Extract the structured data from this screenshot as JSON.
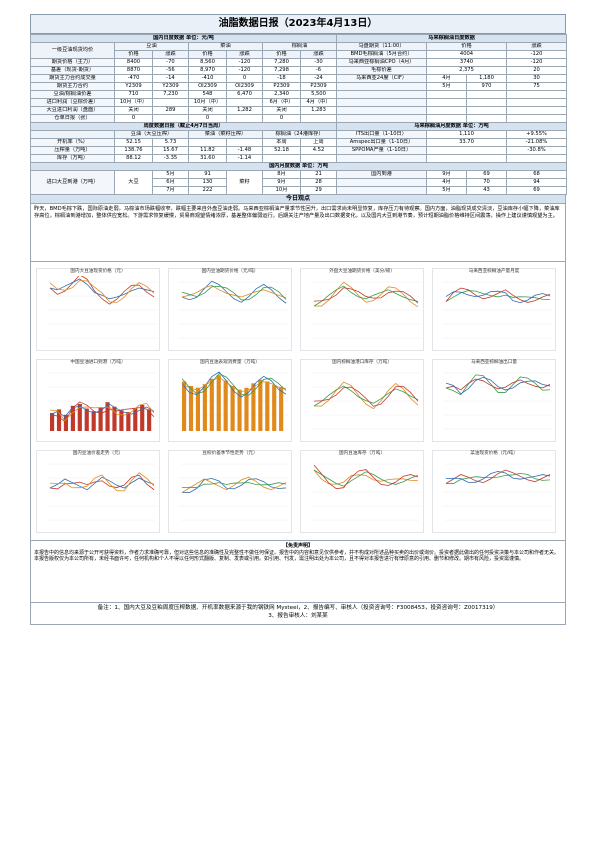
{
  "title": "油脂数据日报（2023年4月13日）",
  "sec": {
    "domestic": "国内日度数据 单位：元/吨",
    "malaysia": "马来棕榈油日度数据",
    "weekly": "周度数据日报（截止4月7日当周）",
    "mpob": "马来棕榈油月度数据 单位：万吨",
    "monthly": "国内月度数据 单位：万吨",
    "comment": "今日观点"
  },
  "products": {
    "soy": "豆油",
    "rapeseed": "菜油",
    "palm": "棕榈油"
  },
  "cols": {
    "price": "价格",
    "change": "涨跌"
  },
  "row_labels": [
    "一级豆油现货均价",
    "期货价格（主力）",
    "基差（现货-期货）",
    "期货主力合约成交量",
    "豆油/棕榈油价差",
    "期货主力合约"
  ],
  "spot": [
    [
      "8400",
      "-70"
    ],
    [
      "8,560",
      "-120"
    ],
    [
      "7,280",
      "-30"
    ]
  ],
  "fut": [
    [
      "8870",
      "-56"
    ],
    [
      "8,970",
      "-120"
    ],
    [
      "7,298",
      "-6"
    ]
  ],
  "basis": [
    [
      "-470",
      "-14"
    ],
    [
      "-410",
      "0"
    ],
    [
      "-18",
      "-24"
    ]
  ],
  "vol": [
    [
      "Y2309",
      "Y2309"
    ],
    [
      "OI2309",
      "OI2309"
    ],
    [
      "P2309",
      "P2309"
    ]
  ],
  "spread": [
    [
      "710",
      "7,230"
    ],
    [
      "548",
      "6,470"
    ],
    [
      "2,340",
      "5,500"
    ]
  ],
  "mcol": [
    "马盘期货（11:00）",
    "价格",
    "涨跌"
  ],
  "mrows": [
    [
      "BMD毛棕榈油（5月合约）",
      "4004",
      "-120"
    ],
    [
      "马来西亚棕榈油CPO（4月）",
      "3740",
      "-120"
    ],
    [
      "毛棕价差",
      "2,375",
      "20"
    ],
    [
      "马来西亚24度（CIF）",
      "4月",
      "1,180",
      "30"
    ]
  ],
  "mprod": [
    "5月",
    "970",
    "75"
  ],
  "inv_labels": [
    "进口利润（豆棕价差）",
    "大豆进口利润（盘面）",
    "在途船数/到港",
    "仓单日报（张）"
  ],
  "inv": [
    [
      "10月（中）",
      "10月（中）",
      "6月（中）",
      "4月（中）"
    ],
    [
      "关闭",
      "289",
      "0"
    ],
    [
      "关闭",
      "1,282",
      "0"
    ],
    [
      "关闭",
      "1,283",
      "0"
    ]
  ],
  "weekly_hdr": [
    "豆油（大豆压榨）",
    "111家豆油库存",
    "菜油（菜籽压榨）",
    "15家菜油库存",
    "棕榈油（24港库存）",
    "本周",
    "上周"
  ],
  "weekly": [
    [
      "开机率（%）",
      "52.15",
      "5.73"
    ],
    [
      "压榨量（万吨）",
      "138.76",
      "15.67",
      "11.82",
      "-1.48",
      "52.18",
      "4.52"
    ],
    [
      "库存（万吨）",
      "88.12",
      "-3.35",
      "31.60",
      "-1.14"
    ]
  ],
  "mpob_rows": [
    [
      "ITS出口量（1-10日）",
      "1,110",
      "+9.55%"
    ],
    [
      "Amspec出口量（1-10日）",
      "33.70",
      "-21.08%"
    ],
    [
      "SPPOMA产量（1-10日）",
      "",
      "-30.8%"
    ]
  ],
  "month_rows": [
    [
      "5月",
      "91",
      "8月",
      "21",
      "68"
    ],
    [
      "6月",
      "130",
      "9月",
      "28",
      "94"
    ],
    [
      "7月",
      "222",
      "10月",
      "29",
      "69"
    ]
  ],
  "month_side": [
    "大豆",
    "菜籽",
    "棕榈油"
  ],
  "dom_rows": [
    [
      "国内到港",
      "9月",
      "69"
    ],
    [
      "4月",
      "4月",
      "70"
    ],
    [
      "5月",
      "5月",
      "43"
    ]
  ],
  "price_rows": [
    [
      "进口大豆到港（万吨）",
      "",
      "",
      "",
      ""
    ],
    [
      "",
      "",
      "",
      "",
      ""
    ]
  ],
  "comment": "昨天，BMD毛棕下跌，国际原油走弱，马棕油市场跌幅收窄，跌幅主要来自外盘豆油走弱。马来西亚棕榈油产量季节性回升，出口需求尚未明显恢复，库存压力有待观察。国内方面，油脂现货成交清淡，豆油库存小幅下降，菜油库存高位，棕榈油到港增加，整体供应宽松。下游需求恢复缓慢，贸易商观望情绪浓厚，基差整体偏弱运行。后期关注产地产量及出口数据变化，以及国内大豆到港节奏，预计短期油脂价格维持区间震荡，操作上建议谨慎观望为主。",
  "charts": [
    {
      "title": "国内大豆油现货价格（元）",
      "series": [
        [
          60,
          58,
          62,
          66,
          70,
          64,
          55,
          52,
          48,
          50,
          53,
          57,
          60,
          58,
          56
        ]
      ]
    },
    {
      "title": "国内豆油期货价格（元/吨）",
      "series": [
        [
          50,
          52,
          55,
          60,
          63,
          58,
          54,
          52,
          50,
          53,
          56,
          58,
          55,
          52,
          49
        ]
      ]
    },
    {
      "title": "外盘大豆油期货价格（美分/磅）",
      "series": [
        [
          40,
          45,
          52,
          58,
          62,
          55,
          50,
          48,
          52,
          55,
          58,
          54,
          50,
          47,
          45
        ]
      ]
    },
    {
      "title": "马来西亚棕榈油产量月度",
      "series": [
        [
          45,
          55,
          60,
          58,
          52,
          48,
          50,
          54,
          58,
          52,
          47,
          44,
          46,
          50,
          53
        ]
      ]
    },
    {
      "title": "中国豆油进口到港（万吨）",
      "series": [
        [
          20,
          24,
          18,
          28,
          30,
          25,
          22,
          26,
          32,
          27,
          23,
          21,
          25,
          29,
          24
        ]
      ]
    },
    {
      "title": "国内豆油表观消费量（万吨）",
      "series": [
        [
          55,
          50,
          48,
          52,
          58,
          62,
          56,
          50,
          46,
          48,
          53,
          57,
          55,
          51,
          49
        ]
      ]
    },
    {
      "title": "国内棕榈油港口库存（万吨）",
      "series": [
        [
          30,
          35,
          42,
          48,
          52,
          47,
          40,
          36,
          33,
          38,
          44,
          49,
          46,
          41,
          37
        ]
      ]
    },
    {
      "title": "马来西亚棕榈油出口量",
      "series": [
        [
          50,
          52,
          48,
          55,
          60,
          58,
          53,
          49,
          51,
          56,
          59,
          55,
          52,
          50,
          54
        ]
      ]
    },
    {
      "title": "国内豆油价差走势（元）",
      "series": [
        [
          40,
          44,
          50,
          46,
          42,
          38,
          45,
          52,
          48,
          43,
          40,
          46,
          51,
          47,
          44
        ]
      ]
    },
    {
      "title": "豆棕价差季节性走势（元）",
      "series": [
        [
          35,
          40,
          45,
          50,
          46,
          42,
          38,
          43,
          49,
          52,
          47,
          41,
          38,
          42,
          46
        ]
      ]
    },
    {
      "title": "国内豆油库存（万吨）",
      "series": [
        [
          60,
          55,
          50,
          45,
          42,
          48,
          53,
          58,
          55,
          50,
          46,
          44,
          47,
          51,
          54
        ]
      ]
    },
    {
      "title": "菜油现货价格（元/吨）",
      "series": [
        [
          45,
          50,
          55,
          52,
          48,
          46,
          50,
          56,
          60,
          57,
          53,
          49,
          47,
          51,
          55
        ]
      ]
    }
  ],
  "foot_title": "【免责声明】",
  "foot": "本报告中的信息均来源于公开可获得资料，作者力求准确可靠，但对这些信息的准确性及完整性不做任何保证。报告中的内容和意见仅供参考，并不构成对所述品种买卖的出价或询价。投资者据此做出的任何投资决策与本公司和作者无关。本报告版权仅为本公司所有，未经书面许可，任何机构和个人不得以任何形式翻版、复制、发表或引用。如引用、刊发，需注明出处为本公司，且不得对本报告进行有悖原意的引用、删节和修改。期市有风险，投资需谨慎。",
  "notice_1": "备注：1、国内大豆及豆粕周度压榨数据、开机率数据来源于我的钢铁网 Mysteel，2、报告编写、审核人（投资咨询号：F3008453，投资咨询号：Z0017319）",
  "notice_2": "3、报告审核人：刘某某"
}
